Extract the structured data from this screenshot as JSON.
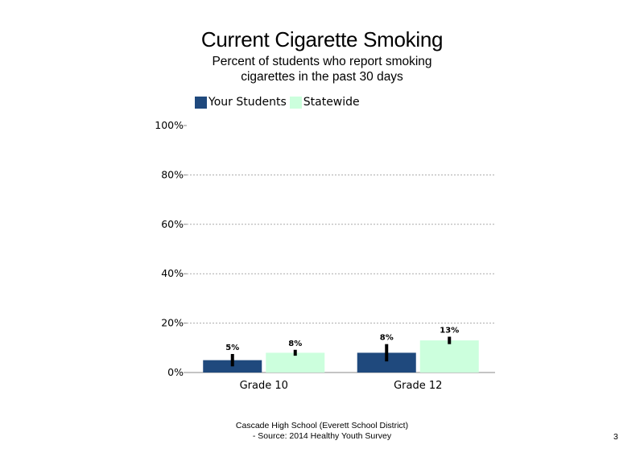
{
  "chart_data": {
    "type": "bar",
    "title": "Current Cigarette Smoking",
    "subtitle": "Percent of students who report smoking cigarettes in the past 30 days",
    "categories": [
      "Grade 10",
      "Grade 12"
    ],
    "series": [
      {
        "name": "Your Students",
        "values": [
          5,
          8
        ],
        "labels": [
          "5%",
          "8%"
        ],
        "error_low": [
          2.5,
          4.5
        ],
        "error_high": [
          7.5,
          11.5
        ],
        "color": "#1F497D"
      },
      {
        "name": "Statewide",
        "values": [
          8,
          13
        ],
        "labels": [
          "8%",
          "13%"
        ],
        "error_low": [
          6.8,
          11.5
        ],
        "error_high": [
          9.2,
          14.5
        ],
        "color": "#CCFFDD"
      }
    ],
    "yticks": [
      "0%",
      "20%",
      "40%",
      "60%",
      "80%",
      "100%"
    ],
    "ylim": [
      0,
      100
    ],
    "grid": true,
    "legend_position": "top-left",
    "xlabel": "",
    "ylabel": ""
  },
  "footer": {
    "line1": "Cascade High School (Everett School District)",
    "line2": "- Source: 2014 Healthy Youth Survey"
  },
  "page_number": "3"
}
